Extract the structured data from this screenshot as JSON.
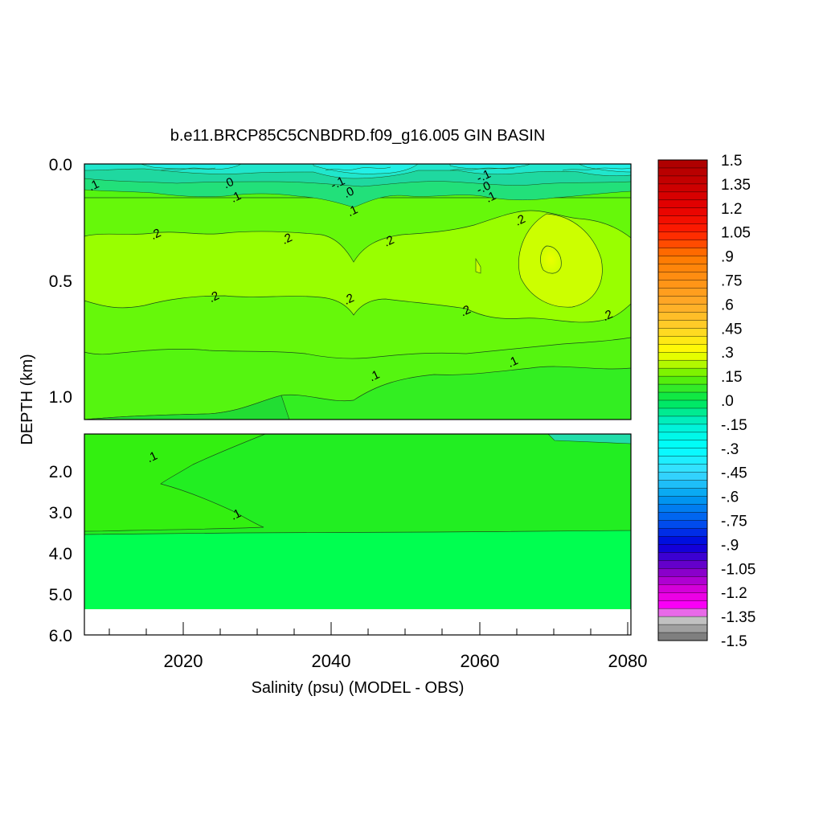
{
  "chart_data": {
    "type": "heatmap",
    "title": "b.e11.BRCP85C5CNBDRD.f09_g16.005 GIN BASIN",
    "xlabel": "Salinity (psu) (MODEL - OBS)",
    "ylabel": "DEPTH (km)",
    "x_ticks": [
      "2020",
      "2040",
      "2060",
      "2080"
    ],
    "x_range": [
      2006,
      2081
    ],
    "y_ticks_upper": [
      "0.0",
      "0.5",
      "1.0"
    ],
    "y_ticks_lower": [
      "2.0",
      "3.0",
      "4.0",
      "5.0",
      "6.0"
    ],
    "y_range_upper_km": [
      0.0,
      1.1
    ],
    "y_range_lower_km": [
      1.1,
      6.0
    ],
    "colorbar_labels": [
      "1.5",
      "1.35",
      "1.2",
      "1.05",
      ".9",
      ".75",
      ".6",
      ".45",
      ".3",
      ".15",
      ".0",
      "-.15",
      "-.3",
      "-.45",
      "-.6",
      "-.75",
      "-.9",
      "-1.05",
      "-1.2",
      "-1.35",
      "-1.5"
    ],
    "colorbar_range": [
      -1.5,
      1.5
    ],
    "contour_labels": [
      {
        "text": ".1",
        "x": 2007.5,
        "y": 0.09
      },
      {
        "text": ".0",
        "x": 2026,
        "y": 0.08
      },
      {
        "text": ".1",
        "x": 2027,
        "y": 0.14
      },
      {
        "text": ".2",
        "x": 2016,
        "y": 0.3
      },
      {
        "text": ".2",
        "x": 2034,
        "y": 0.32
      },
      {
        "text": ".2",
        "x": 2024,
        "y": 0.57
      },
      {
        "text": "-.1",
        "x": 2041,
        "y": 0.08
      },
      {
        "text": ".0",
        "x": 2042.5,
        "y": 0.12
      },
      {
        "text": ".1",
        "x": 2043,
        "y": 0.2
      },
      {
        "text": ".2",
        "x": 2048,
        "y": 0.33
      },
      {
        "text": ".2",
        "x": 2042.5,
        "y": 0.58
      },
      {
        "text": "-.1",
        "x": 2061,
        "y": 0.05
      },
      {
        "text": "-.0",
        "x": 2061,
        "y": 0.1
      },
      {
        "text": ".1",
        "x": 2062,
        "y": 0.14
      },
      {
        "text": ".2",
        "x": 2066,
        "y": 0.24
      },
      {
        "text": ".2",
        "x": 2058.5,
        "y": 0.63
      },
      {
        "text": ".2",
        "x": 2078,
        "y": 0.65
      },
      {
        "text": ".1",
        "x": 2046,
        "y": 0.91
      },
      {
        "text": ".1",
        "x": 2065,
        "y": 0.85
      },
      {
        "text": ".1",
        "x": 2015.5,
        "y": 2.05
      },
      {
        "text": ".1",
        "x": 2027,
        "y": 3.45
      }
    ]
  }
}
